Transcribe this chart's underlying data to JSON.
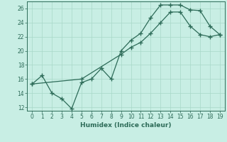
{
  "xlabel": "Humidex (Indice chaleur)",
  "background_color": "#c8eee4",
  "line_color": "#2d6b58",
  "grid_color": "#a8d8c8",
  "x_data1": [
    0,
    1,
    2,
    3,
    4,
    5,
    6,
    7,
    8,
    9,
    10,
    11,
    12,
    13,
    14,
    15,
    16,
    17,
    18,
    19
  ],
  "y_data1": [
    15.3,
    16.5,
    14.0,
    13.2,
    11.8,
    15.5,
    16.0,
    17.5,
    16.0,
    20.0,
    21.5,
    22.5,
    24.7,
    26.5,
    26.5,
    26.5,
    25.8,
    25.7,
    23.5,
    22.3
  ],
  "x_data2": [
    0,
    5,
    9,
    10,
    11,
    12,
    13,
    14,
    15,
    16,
    17,
    18,
    19
  ],
  "y_data2": [
    15.3,
    16.0,
    19.5,
    20.5,
    21.2,
    22.5,
    24.0,
    25.5,
    25.5,
    23.5,
    22.3,
    22.0,
    22.3
  ],
  "ylim": [
    11.5,
    27
  ],
  "xlim": [
    -0.5,
    19.5
  ],
  "yticks": [
    12,
    14,
    16,
    18,
    20,
    22,
    24,
    26
  ],
  "xticks": [
    0,
    1,
    2,
    3,
    4,
    5,
    6,
    7,
    8,
    9,
    10,
    11,
    12,
    13,
    14,
    15,
    16,
    17,
    18,
    19
  ],
  "marker": "+",
  "linewidth": 0.9,
  "markersize": 4,
  "xlabel_fontsize": 6.5,
  "tick_fontsize": 5.5
}
